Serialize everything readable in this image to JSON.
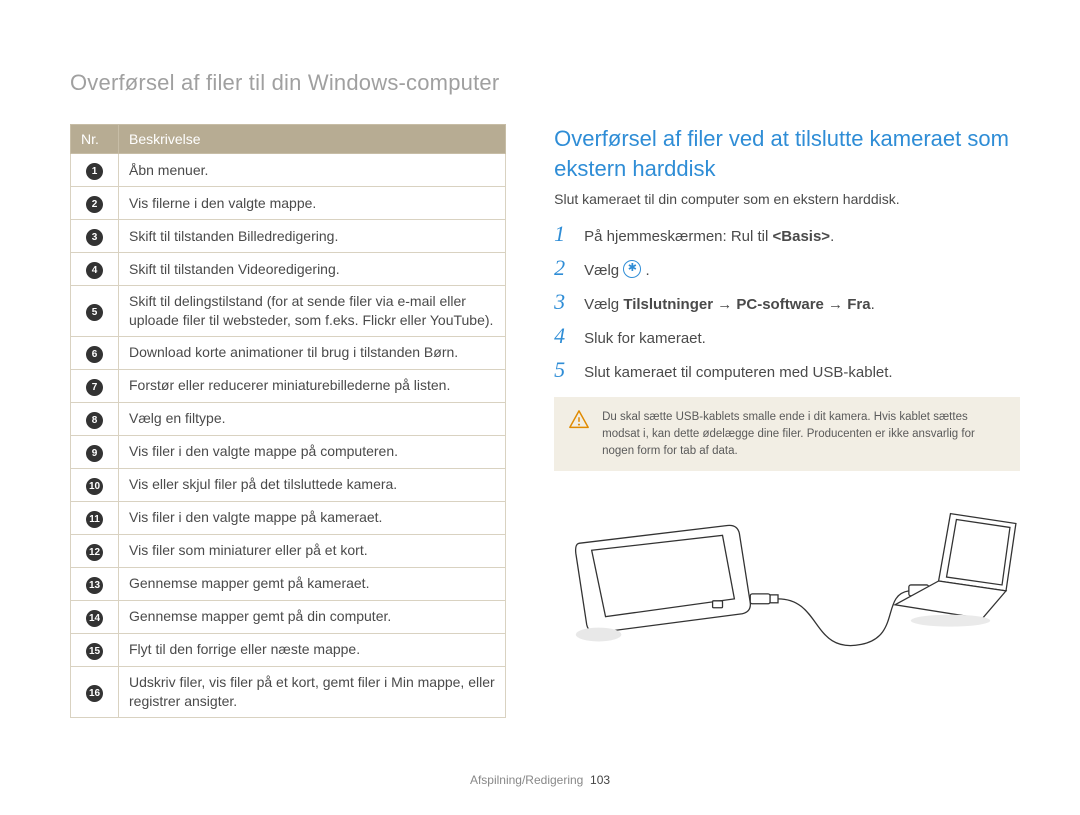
{
  "page_title": "Overførsel af filer til din Windows-computer",
  "table": {
    "header_nr": "Nr.",
    "header_desc": "Beskrivelse",
    "rows": [
      {
        "n": "1",
        "desc": "Åbn menuer."
      },
      {
        "n": "2",
        "desc": "Vis filerne i den valgte mappe."
      },
      {
        "n": "3",
        "desc": "Skift til tilstanden Billedredigering."
      },
      {
        "n": "4",
        "desc": "Skift til tilstanden Videoredigering."
      },
      {
        "n": "5",
        "desc": "Skift til delingstilstand (for at sende filer via e-mail eller uploade filer til websteder, som f.eks. Flickr eller YouTube)."
      },
      {
        "n": "6",
        "desc": "Download korte animationer til brug i tilstanden Børn."
      },
      {
        "n": "7",
        "desc": "Forstør eller reducerer miniaturebillederne på listen."
      },
      {
        "n": "8",
        "desc": "Vælg en filtype."
      },
      {
        "n": "9",
        "desc": "Vis filer i den valgte mappe på computeren."
      },
      {
        "n": "10",
        "desc": "Vis eller skjul filer på det tilsluttede kamera."
      },
      {
        "n": "11",
        "desc": "Vis filer i den valgte mappe på kameraet."
      },
      {
        "n": "12",
        "desc": "Vis filer som miniaturer eller på et kort."
      },
      {
        "n": "13",
        "desc": "Gennemse mapper gemt på kameraet."
      },
      {
        "n": "14",
        "desc": "Gennemse mapper gemt på din computer."
      },
      {
        "n": "15",
        "desc": "Flyt til den forrige eller næste mappe."
      },
      {
        "n": "16",
        "desc": "Udskriv filer, vis filer på et kort, gemt filer i Min mappe, eller registrer ansigter."
      }
    ]
  },
  "right": {
    "heading": "Overførsel af filer ved at tilslutte kameraet som ekstern harddisk",
    "sub": "Slut kameraet til din computer som en ekstern harddisk.",
    "steps": {
      "s1": {
        "pre": "På hjemmeskærmen: Rul til ",
        "bold": "<Basis>",
        "post": "."
      },
      "s2": {
        "pre": "Vælg ",
        "post": " ."
      },
      "s3": {
        "pre": "Vælg ",
        "bold": "Tilslutninger → PC-software → Fra",
        "post": "."
      },
      "s4": {
        "text": "Sluk for kameraet."
      },
      "s5": {
        "text": "Slut kameraet til computeren med USB-kablet."
      }
    },
    "warning": "Du skal sætte USB-kablets smalle ende i dit kamera. Hvis kablet sættes modsat i, kan dette ødelægge dine filer. Producenten er ikke ansvarlig for nogen form for tab af data."
  },
  "footer": {
    "section": "Afspilning/Redigering",
    "page": "103"
  }
}
